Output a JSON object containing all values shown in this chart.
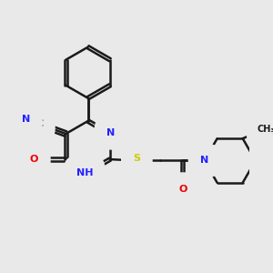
{
  "background_color": "#e9e9e9",
  "bond_color": "#1a1a1a",
  "atom_colors": {
    "N": "#2222ff",
    "O": "#ee0000",
    "S": "#cccc00",
    "C": "#1a1a1a"
  },
  "figsize": [
    3.0,
    3.0
  ],
  "dpi": 100
}
